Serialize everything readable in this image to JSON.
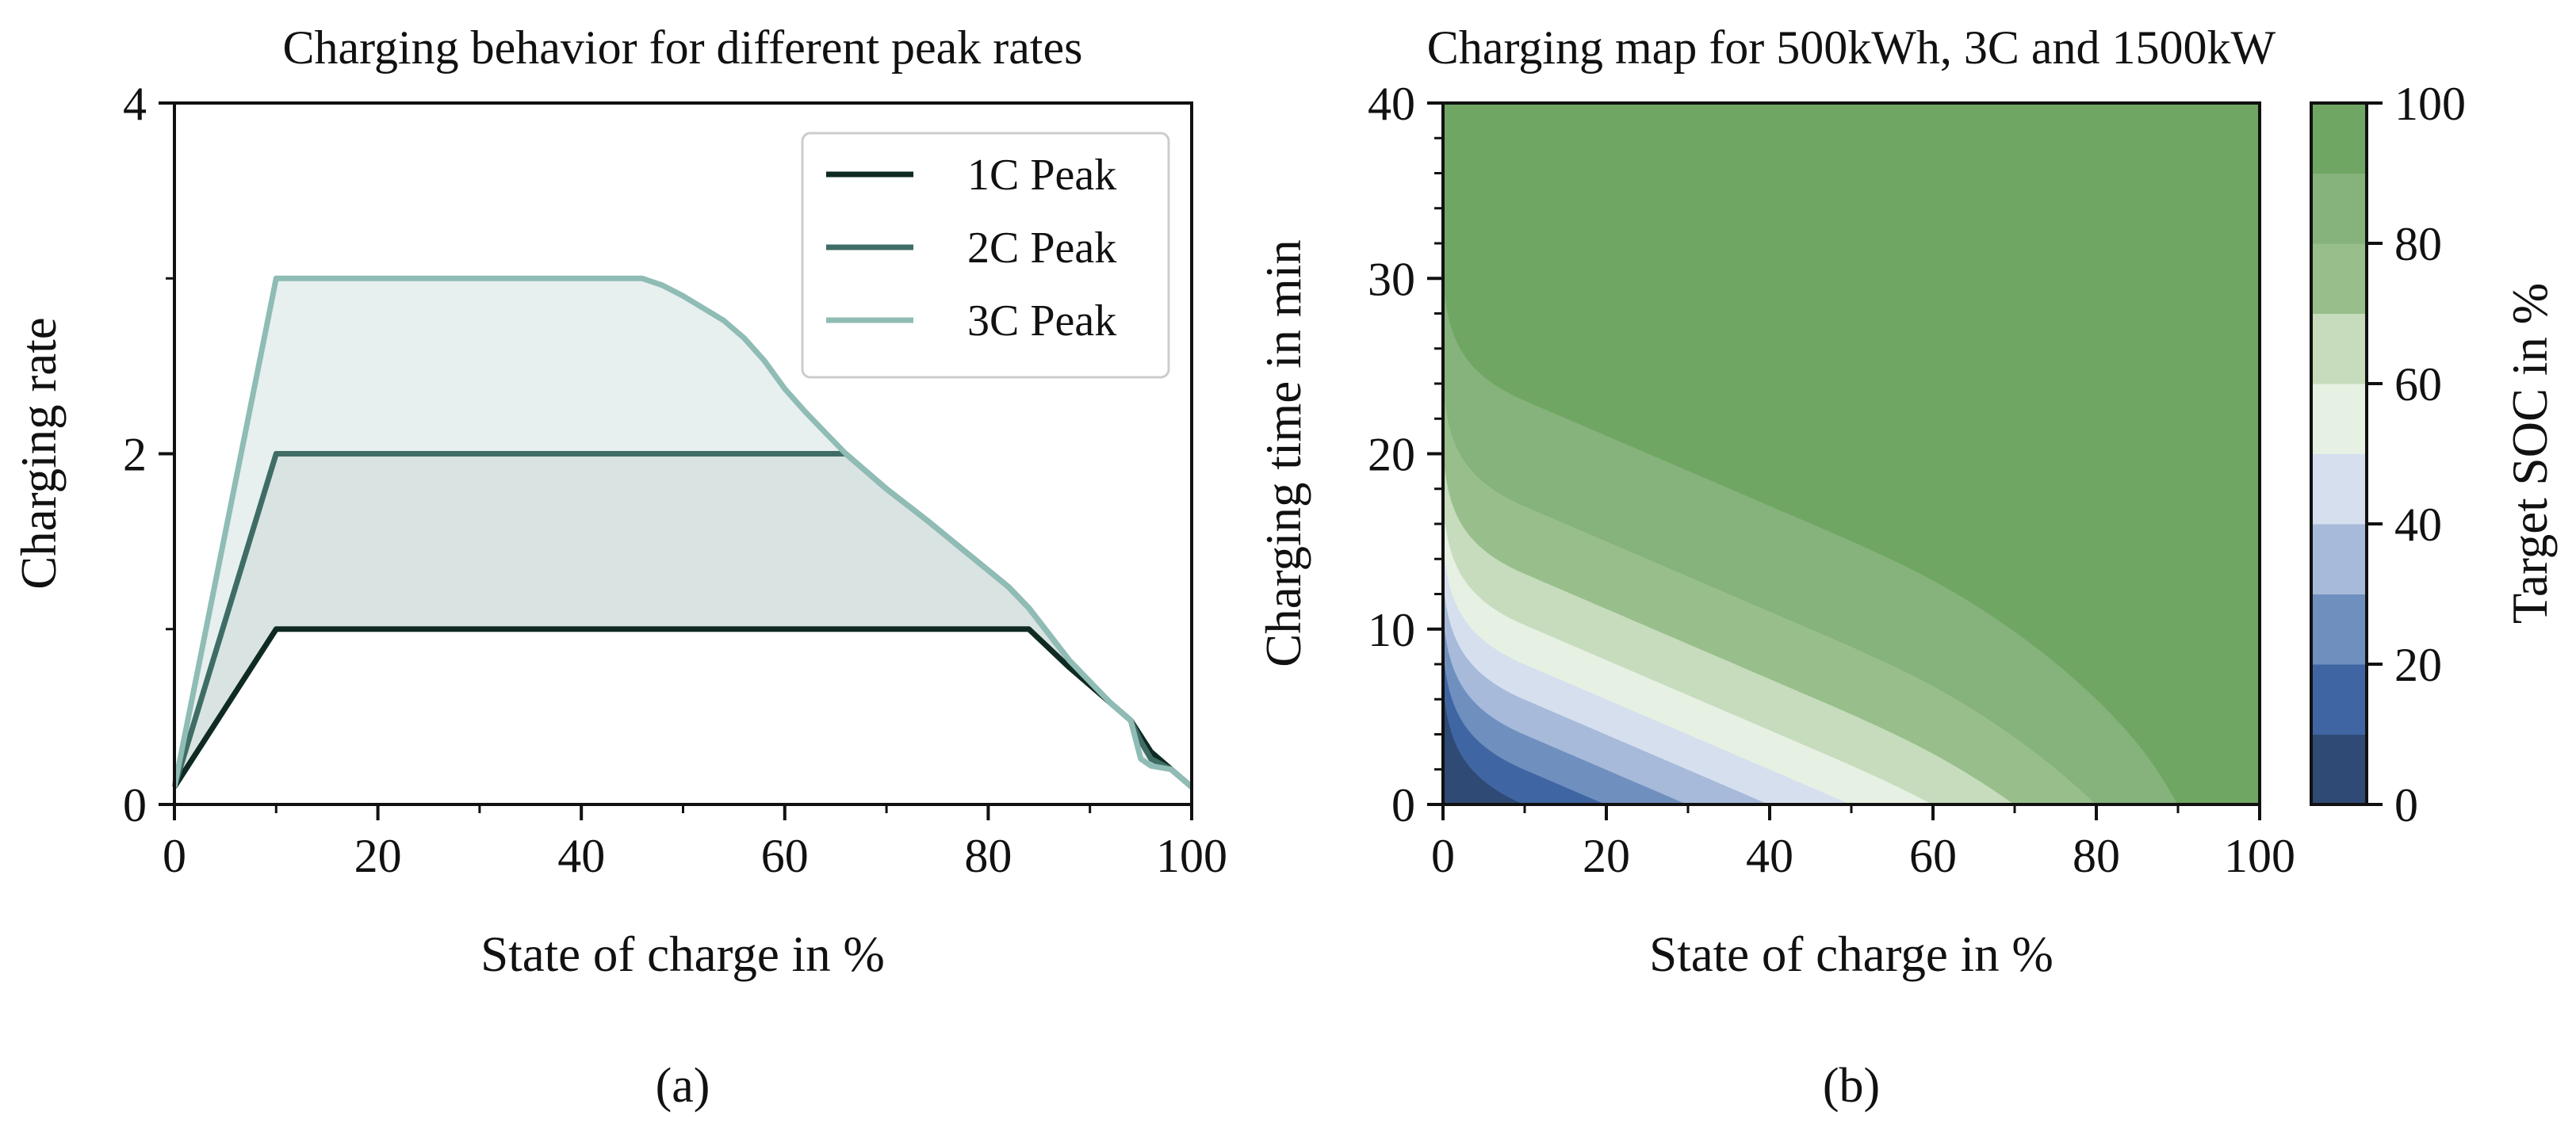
{
  "colors": {
    "c1": "#0f2a22",
    "c2": "#3f6d66",
    "c3": "#8fbcb5",
    "fill3": "#e7f0ef",
    "fill2": "#d9e3e2",
    "levels": [
      "#2f4a74",
      "#3f66a2",
      "#6f8fbf",
      "#a7bad9",
      "#d5dfee",
      "#e6f0e3",
      "#c6dcbd",
      "#98bf8b",
      "#86b27b",
      "#70a664"
    ]
  },
  "chart_data": [
    {
      "type": "line",
      "title": "Charging behavior for different peak rates",
      "xlabel": "State of charge in %",
      "ylabel": "Charging rate",
      "xlim": [
        0,
        100
      ],
      "ylim": [
        0,
        4
      ],
      "xticks": [
        "0",
        "20",
        "40",
        "60",
        "80",
        "100"
      ],
      "yticks": [
        "0",
        "2",
        "4"
      ],
      "legend_position": "top-right",
      "series": [
        {
          "name": "1C Peak",
          "x": [
            0,
            10,
            84,
            88,
            92,
            94,
            96,
            98,
            100
          ],
          "y": [
            0.1,
            1.0,
            1.0,
            0.78,
            0.58,
            0.48,
            0.3,
            0.2,
            0.1
          ]
        },
        {
          "name": "2C Peak",
          "x": [
            0,
            10,
            66,
            70,
            74,
            78,
            82,
            84,
            88,
            92,
            94,
            95,
            96,
            98,
            100
          ],
          "y": [
            0.1,
            2.0,
            2.0,
            1.8,
            1.62,
            1.43,
            1.24,
            1.12,
            0.82,
            0.58,
            0.48,
            0.36,
            0.26,
            0.2,
            0.1
          ]
        },
        {
          "name": "3C Peak",
          "x": [
            0,
            10,
            46,
            48,
            50,
            52,
            54,
            56,
            58,
            60,
            62,
            64,
            66,
            70,
            74,
            78,
            82,
            84,
            88,
            92,
            94,
            95,
            96,
            98,
            100
          ],
          "y": [
            0.1,
            3.0,
            3.0,
            2.96,
            2.9,
            2.83,
            2.76,
            2.66,
            2.53,
            2.37,
            2.24,
            2.12,
            2.0,
            1.8,
            1.62,
            1.43,
            1.24,
            1.12,
            0.82,
            0.58,
            0.48,
            0.26,
            0.22,
            0.2,
            0.1
          ]
        }
      ],
      "panel_label": "(a)"
    },
    {
      "type": "heatmap",
      "title": "Charging map for 500kWh, 3C and 1500kW",
      "xlabel": "State of charge in %",
      "ylabel": "Charging time in min",
      "xlim": [
        0,
        100
      ],
      "ylim": [
        0,
        40
      ],
      "xticks": [
        "0",
        "20",
        "40",
        "60",
        "80",
        "100"
      ],
      "yticks": [
        "0",
        "10",
        "20",
        "30",
        "40"
      ],
      "colorbar_label": "Target SOC in %",
      "colorbar_ticks": [
        "0",
        "20",
        "40",
        "60",
        "80",
        "100"
      ],
      "levels": [
        0,
        10,
        20,
        30,
        40,
        50,
        60,
        70,
        80,
        90,
        100
      ],
      "panel_label": "(b)"
    }
  ]
}
